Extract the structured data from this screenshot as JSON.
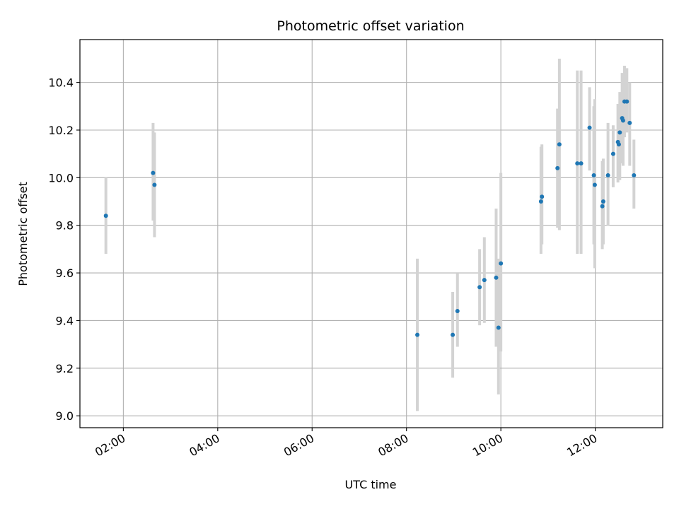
{
  "chart_data": {
    "type": "scatter",
    "title": "Photometric offset variation",
    "xlabel": "UTC time",
    "ylabel": "Photometric offset",
    "xlim": [
      1.08,
      13.43
    ],
    "ylim": [
      8.95,
      10.58
    ],
    "x_ticks": [
      {
        "value": 2,
        "label": "02:00"
      },
      {
        "value": 4,
        "label": "04:00"
      },
      {
        "value": 6,
        "label": "06:00"
      },
      {
        "value": 8,
        "label": "08:00"
      },
      {
        "value": 10,
        "label": "10:00"
      },
      {
        "value": 12,
        "label": "12:00"
      }
    ],
    "y_ticks": [
      {
        "value": 9.0,
        "label": "9.0"
      },
      {
        "value": 9.2,
        "label": "9.2"
      },
      {
        "value": 9.4,
        "label": "9.4"
      },
      {
        "value": 9.6,
        "label": "9.6"
      },
      {
        "value": 9.8,
        "label": "9.8"
      },
      {
        "value": 10.0,
        "label": "10.0"
      },
      {
        "value": 10.2,
        "label": "10.2"
      },
      {
        "value": 10.4,
        "label": "10.4"
      }
    ],
    "grid": true,
    "marker_color": "#1f77b4",
    "errorbar_color": "#d3d3d3",
    "points": [
      {
        "x": 1.63,
        "y": 9.84,
        "lo": 9.68,
        "hi": 10.0
      },
      {
        "x": 2.63,
        "y": 10.02,
        "lo": 9.82,
        "hi": 10.23
      },
      {
        "x": 2.66,
        "y": 9.97,
        "lo": 9.75,
        "hi": 10.19
      },
      {
        "x": 8.23,
        "y": 9.34,
        "lo": 9.02,
        "hi": 9.66
      },
      {
        "x": 8.98,
        "y": 9.34,
        "lo": 9.16,
        "hi": 9.52
      },
      {
        "x": 9.08,
        "y": 9.44,
        "lo": 9.29,
        "hi": 9.6
      },
      {
        "x": 9.55,
        "y": 9.54,
        "lo": 9.38,
        "hi": 9.7
      },
      {
        "x": 9.65,
        "y": 9.57,
        "lo": 9.39,
        "hi": 9.75
      },
      {
        "x": 9.9,
        "y": 9.58,
        "lo": 9.29,
        "hi": 9.87
      },
      {
        "x": 9.95,
        "y": 9.37,
        "lo": 9.09,
        "hi": 9.66
      },
      {
        "x": 10.0,
        "y": 9.64,
        "lo": 9.27,
        "hi": 10.02
      },
      {
        "x": 10.85,
        "y": 9.9,
        "lo": 9.68,
        "hi": 10.13
      },
      {
        "x": 10.87,
        "y": 9.92,
        "lo": 9.72,
        "hi": 10.14
      },
      {
        "x": 11.2,
        "y": 10.04,
        "lo": 9.79,
        "hi": 10.29
      },
      {
        "x": 11.24,
        "y": 10.14,
        "lo": 9.78,
        "hi": 10.5
      },
      {
        "x": 11.62,
        "y": 10.06,
        "lo": 9.68,
        "hi": 10.45
      },
      {
        "x": 11.7,
        "y": 10.06,
        "lo": 9.68,
        "hi": 10.45
      },
      {
        "x": 11.88,
        "y": 10.21,
        "lo": 10.03,
        "hi": 10.38
      },
      {
        "x": 11.97,
        "y": 10.01,
        "lo": 9.72,
        "hi": 10.3
      },
      {
        "x": 11.99,
        "y": 9.97,
        "lo": 9.62,
        "hi": 10.33
      },
      {
        "x": 12.15,
        "y": 9.88,
        "lo": 9.7,
        "hi": 10.07
      },
      {
        "x": 12.17,
        "y": 9.9,
        "lo": 9.72,
        "hi": 10.08
      },
      {
        "x": 12.27,
        "y": 10.01,
        "lo": 9.8,
        "hi": 10.23
      },
      {
        "x": 12.38,
        "y": 10.1,
        "lo": 9.96,
        "hi": 10.22
      },
      {
        "x": 12.48,
        "y": 10.15,
        "lo": 9.98,
        "hi": 10.31
      },
      {
        "x": 12.5,
        "y": 10.14,
        "lo": 10.0,
        "hi": 10.27
      },
      {
        "x": 12.52,
        "y": 10.19,
        "lo": 9.99,
        "hi": 10.36
      },
      {
        "x": 12.57,
        "y": 10.25,
        "lo": 10.06,
        "hi": 10.44
      },
      {
        "x": 12.59,
        "y": 10.24,
        "lo": 10.05,
        "hi": 10.43
      },
      {
        "x": 12.62,
        "y": 10.32,
        "lo": 10.17,
        "hi": 10.47
      },
      {
        "x": 12.67,
        "y": 10.32,
        "lo": 10.19,
        "hi": 10.46
      },
      {
        "x": 12.73,
        "y": 10.23,
        "lo": 10.05,
        "hi": 10.4
      },
      {
        "x": 12.82,
        "y": 10.01,
        "lo": 9.87,
        "hi": 10.16
      }
    ]
  }
}
